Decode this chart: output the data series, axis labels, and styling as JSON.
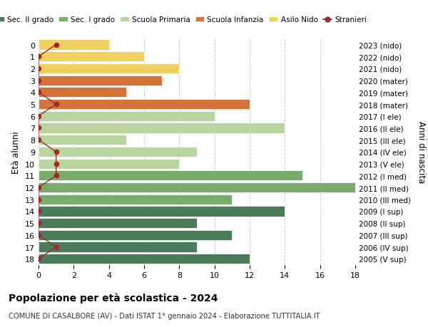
{
  "ages": [
    18,
    17,
    16,
    15,
    14,
    13,
    12,
    11,
    10,
    9,
    8,
    7,
    6,
    5,
    4,
    3,
    2,
    1,
    0
  ],
  "right_labels": [
    "2005 (V sup)",
    "2006 (IV sup)",
    "2007 (III sup)",
    "2008 (II sup)",
    "2009 (I sup)",
    "2010 (III med)",
    "2011 (II med)",
    "2012 (I med)",
    "2013 (V ele)",
    "2014 (IV ele)",
    "2015 (III ele)",
    "2016 (II ele)",
    "2017 (I ele)",
    "2018 (mater)",
    "2019 (mater)",
    "2020 (mater)",
    "2021 (nido)",
    "2022 (nido)",
    "2023 (nido)"
  ],
  "bar_values": [
    12,
    9,
    11,
    9,
    14,
    11,
    18,
    15,
    8,
    9,
    5,
    14,
    10,
    12,
    5,
    7,
    8,
    6,
    4
  ],
  "bar_colors": [
    "#4a7c59",
    "#4a7c59",
    "#4a7c59",
    "#4a7c59",
    "#4a7c59",
    "#7aab6e",
    "#7aab6e",
    "#7aab6e",
    "#b8d5a0",
    "#b8d5a0",
    "#b8d5a0",
    "#b8d5a0",
    "#b8d5a0",
    "#d4733a",
    "#d4733a",
    "#d4733a",
    "#f0d060",
    "#f0d060",
    "#f0d060"
  ],
  "stranieri_x": [
    0,
    1,
    0,
    0,
    0,
    0,
    0,
    1,
    1,
    1,
    0,
    0,
    0,
    1,
    0,
    0,
    0,
    0,
    1
  ],
  "stranieri_color": "#9e2a2b",
  "legend_labels": [
    "Sec. II grado",
    "Sec. I grado",
    "Scuola Primaria",
    "Scuola Infanzia",
    "Asilo Nido",
    "Stranieri"
  ],
  "legend_colors": [
    "#4a7c59",
    "#7aab6e",
    "#b8d5a0",
    "#d4733a",
    "#f0d060",
    "#9e2a2b"
  ],
  "ylabel_left": "Età alunni",
  "ylabel_right": "Anni di nascita",
  "title": "Popolazione per età scolastica - 2024",
  "subtitle": "COMUNE DI CASALBORE (AV) - Dati ISTAT 1° gennaio 2024 - Elaborazione TUTTITALIA.IT",
  "xlim": [
    0,
    18
  ],
  "xticks": [
    0,
    2,
    4,
    6,
    8,
    10,
    12,
    14,
    16,
    18
  ],
  "bg_color": "#ffffff",
  "bar_height": 0.85,
  "grid_color": "#cccccc"
}
